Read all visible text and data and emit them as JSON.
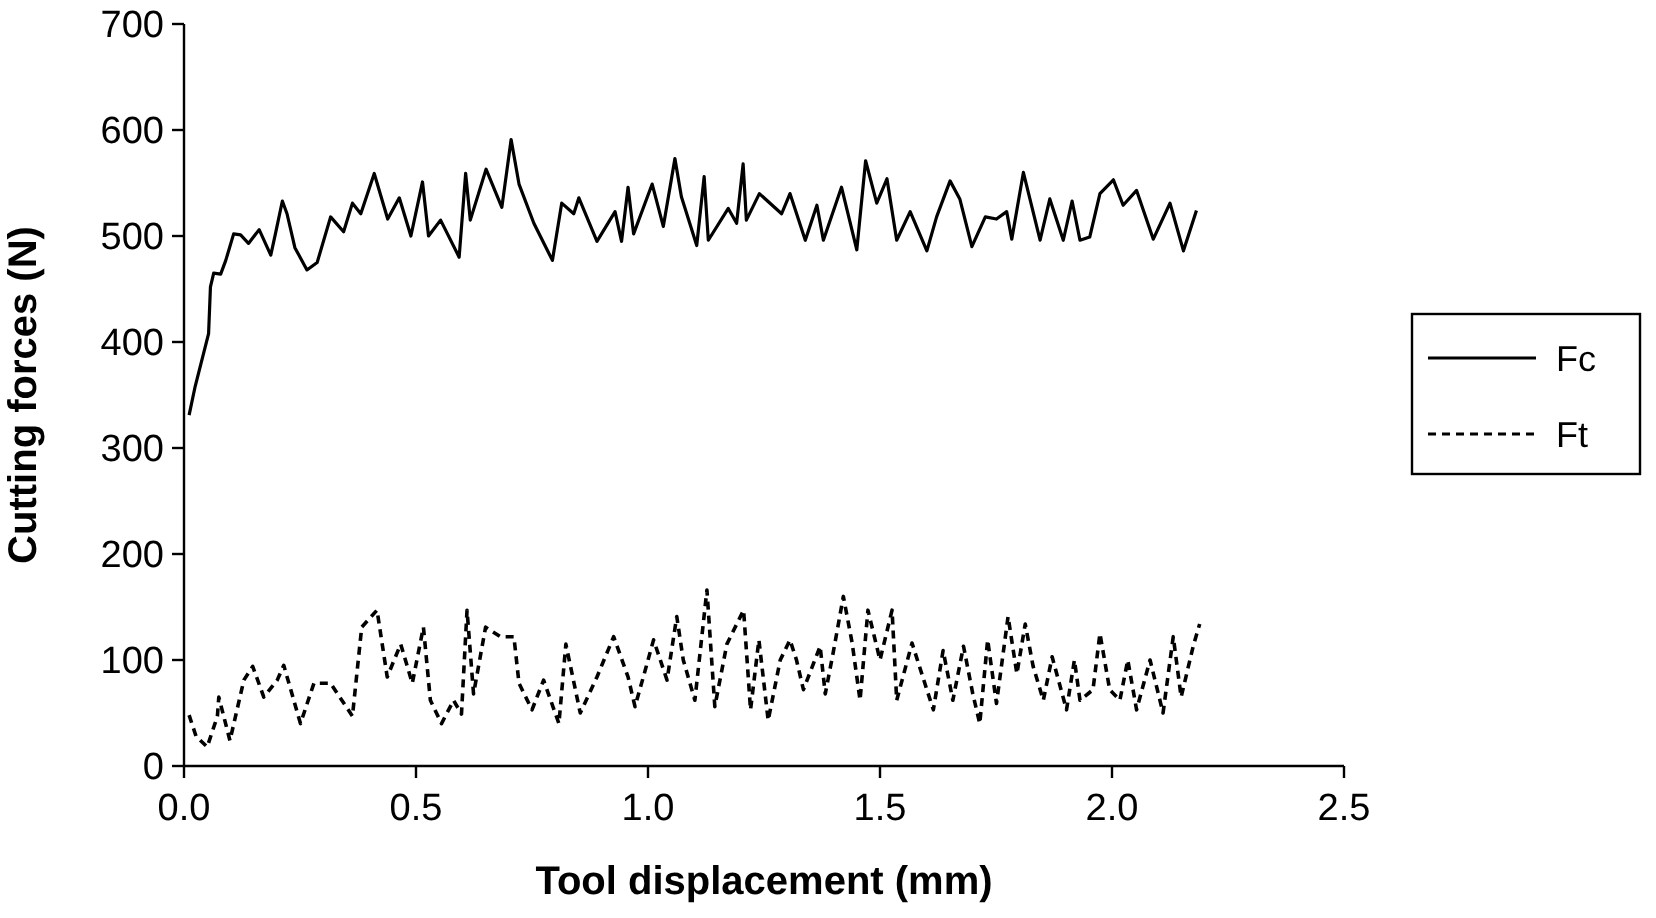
{
  "chart_data": {
    "type": "line",
    "xlabel": "Tool displacement (mm)",
    "ylabel": "Cutting forces (N)",
    "xlim": [
      0,
      2.5
    ],
    "xticks": [
      {
        "value": 0,
        "label": "0.0"
      },
      {
        "value": 0.5,
        "label": "0.5"
      },
      {
        "value": 1,
        "label": "1.0"
      },
      {
        "value": 1.5,
        "label": "1.5"
      },
      {
        "value": 2,
        "label": "2.0"
      },
      {
        "value": 2.5,
        "label": "2.5"
      }
    ],
    "ylim": [
      0,
      700
    ],
    "yticks": [
      0,
      100,
      200,
      300,
      400,
      500,
      600,
      700
    ],
    "grid": false,
    "legend": "right",
    "marker": "none",
    "series": [
      {
        "name": "Fc",
        "color": "#000000",
        "line_style": "solid",
        "x": [
          0.011,
          0.024,
          0.053,
          0.057,
          0.064,
          0.079,
          0.09,
          0.107,
          0.122,
          0.139,
          0.162,
          0.187,
          0.197,
          0.212,
          0.222,
          0.239,
          0.265,
          0.287,
          0.316,
          0.344,
          0.363,
          0.381,
          0.41,
          0.439,
          0.464,
          0.489,
          0.514,
          0.527,
          0.553,
          0.593,
          0.607,
          0.617,
          0.651,
          0.685,
          0.705,
          0.722,
          0.754,
          0.794,
          0.814,
          0.84,
          0.851,
          0.89,
          0.929,
          0.943,
          0.957,
          0.969,
          1.009,
          1.033,
          1.058,
          1.072,
          1.105,
          1.121,
          1.13,
          1.173,
          1.191,
          1.205,
          1.212,
          1.24,
          1.288,
          1.306,
          1.339,
          1.364,
          1.378,
          1.417,
          1.45,
          1.469,
          1.493,
          1.515,
          1.536,
          1.565,
          1.601,
          1.622,
          1.651,
          1.672,
          1.698,
          1.727,
          1.751,
          1.773,
          1.784,
          1.809,
          1.845,
          1.866,
          1.895,
          1.914,
          1.931,
          1.952,
          1.974,
          2.003,
          2.024,
          2.053,
          2.089,
          2.125,
          2.154,
          2.182
        ],
        "values": [
          331,
          358,
          408,
          452,
          465,
          464,
          477,
          502,
          501,
          493,
          506,
          482,
          502,
          533,
          521,
          489,
          468,
          475,
          518,
          504,
          531,
          521,
          559,
          516,
          536,
          500,
          551,
          500,
          515,
          480,
          559,
          515,
          563,
          527,
          591,
          549,
          512,
          477,
          531,
          521,
          536,
          495,
          523,
          495,
          546,
          502,
          549,
          509,
          573,
          537,
          491,
          556,
          496,
          526,
          512,
          568,
          515,
          540,
          521,
          540,
          496,
          529,
          496,
          546,
          487,
          571,
          531,
          554,
          496,
          523,
          486,
          518,
          552,
          535,
          490,
          518,
          516,
          523,
          497,
          560,
          496,
          535,
          496,
          533,
          496,
          499,
          540,
          553,
          529,
          543,
          497,
          531,
          486,
          524
        ]
      },
      {
        "name": "Ft",
        "color": "#000000",
        "line_style": "dashed",
        "x": [
          0.011,
          0.026,
          0.05,
          0.072,
          0.075,
          0.099,
          0.129,
          0.148,
          0.172,
          0.201,
          0.215,
          0.251,
          0.28,
          0.316,
          0.363,
          0.383,
          0.416,
          0.438,
          0.467,
          0.492,
          0.516,
          0.531,
          0.555,
          0.581,
          0.598,
          0.61,
          0.624,
          0.65,
          0.682,
          0.711,
          0.722,
          0.75,
          0.775,
          0.808,
          0.823,
          0.854,
          0.89,
          0.926,
          0.957,
          0.972,
          0.99,
          1.012,
          1.041,
          1.062,
          1.076,
          1.101,
          1.127,
          1.144,
          1.17,
          1.206,
          1.221,
          1.239,
          1.259,
          1.285,
          1.306,
          1.32,
          1.335,
          1.371,
          1.382,
          1.4,
          1.421,
          1.44,
          1.457,
          1.474,
          1.5,
          1.526,
          1.536,
          1.569,
          1.601,
          1.615,
          1.636,
          1.657,
          1.68,
          1.7,
          1.715,
          1.732,
          1.751,
          1.776,
          1.795,
          1.813,
          1.83,
          1.852,
          1.871,
          1.902,
          1.919,
          1.931,
          1.959,
          1.974,
          1.995,
          2.017,
          2.034,
          2.053,
          2.082,
          2.11,
          2.132,
          2.149,
          2.175,
          2.189
        ],
        "values": [
          48,
          28,
          18,
          47,
          65,
          24,
          81,
          94,
          65,
          81,
          95,
          40,
          78,
          78,
          47,
          131,
          147,
          84,
          115,
          78,
          131,
          62,
          40,
          62,
          49,
          147,
          68,
          131,
          122,
          122,
          78,
          53,
          81,
          40,
          115,
          50,
          84,
          122,
          84,
          56,
          84,
          119,
          81,
          141,
          100,
          62,
          166,
          56,
          115,
          147,
          53,
          119,
          43,
          100,
          119,
          100,
          72,
          113,
          68,
          109,
          160,
          116,
          62,
          147,
          100,
          147,
          62,
          116,
          72,
          53,
          109,
          62,
          113,
          68,
          40,
          119,
          59,
          141,
          87,
          134,
          94,
          62,
          103,
          53,
          100,
          62,
          72,
          125,
          72,
          62,
          100,
          53,
          100,
          50,
          122,
          65,
          113,
          134
        ]
      }
    ]
  }
}
